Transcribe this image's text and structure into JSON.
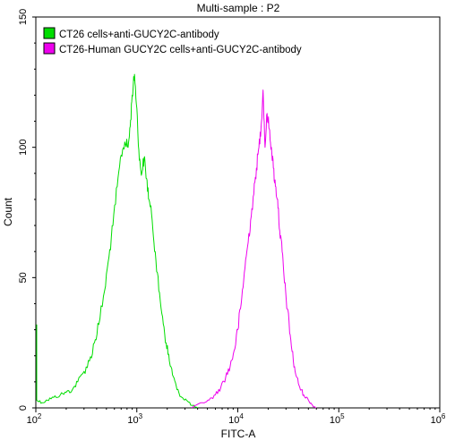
{
  "chart_data": {
    "type": "line",
    "title": "Multi-sample : P2",
    "xlabel": "FITC-A",
    "ylabel": "Count",
    "xscale": "log",
    "xlim": [
      100,
      1000000
    ],
    "ylim": [
      0,
      150
    ],
    "x_ticks": [
      {
        "base": "10",
        "exp": "2"
      },
      {
        "base": "10",
        "exp": "3"
      },
      {
        "base": "10",
        "exp": "4"
      },
      {
        "base": "10",
        "exp": "5"
      },
      {
        "base": "10",
        "exp": "6"
      }
    ],
    "y_ticks": [
      "0",
      "50",
      "100",
      "150"
    ],
    "grid": false,
    "legend_position": "top-left",
    "series": [
      {
        "name": "CT26 cells+anti-GUCY2C-antibody",
        "color": "#00dd00",
        "points": [
          [
            100,
            32
          ],
          [
            102,
            3
          ],
          [
            115,
            2
          ],
          [
            130,
            3
          ],
          [
            150,
            4
          ],
          [
            175,
            5
          ],
          [
            200,
            6
          ],
          [
            230,
            7
          ],
          [
            260,
            10
          ],
          [
            300,
            14
          ],
          [
            340,
            18
          ],
          [
            380,
            25
          ],
          [
            420,
            32
          ],
          [
            480,
            45
          ],
          [
            530,
            58
          ],
          [
            580,
            70
          ],
          [
            640,
            85
          ],
          [
            700,
            97
          ],
          [
            760,
            102
          ],
          [
            820,
            100
          ],
          [
            860,
            108
          ],
          [
            900,
            120
          ],
          [
            950,
            128
          ],
          [
            1000,
            115
          ],
          [
            1060,
            95
          ],
          [
            1120,
            90
          ],
          [
            1180,
            96
          ],
          [
            1250,
            88
          ],
          [
            1320,
            80
          ],
          [
            1420,
            72
          ],
          [
            1520,
            60
          ],
          [
            1650,
            45
          ],
          [
            1800,
            35
          ],
          [
            1950,
            25
          ],
          [
            2100,
            18
          ],
          [
            2300,
            12
          ],
          [
            2500,
            7
          ],
          [
            2800,
            4
          ],
          [
            3100,
            3
          ],
          [
            3500,
            1
          ],
          [
            4000,
            0
          ]
        ]
      },
      {
        "name": "CT26-Human GUCY2C cells+anti-GUCY2C-antibody",
        "color": "#ee00ee",
        "points": [
          [
            3500,
            0
          ],
          [
            4500,
            2
          ],
          [
            5200,
            3
          ],
          [
            6000,
            5
          ],
          [
            6800,
            8
          ],
          [
            7600,
            12
          ],
          [
            8400,
            16
          ],
          [
            9200,
            22
          ],
          [
            10000,
            30
          ],
          [
            10800,
            40
          ],
          [
            11600,
            52
          ],
          [
            12500,
            62
          ],
          [
            13400,
            72
          ],
          [
            14400,
            82
          ],
          [
            15300,
            92
          ],
          [
            16200,
            100
          ],
          [
            17000,
            108
          ],
          [
            17800,
            122
          ],
          [
            18600,
            100
          ],
          [
            19500,
            113
          ],
          [
            20500,
            107
          ],
          [
            21500,
            100
          ],
          [
            22500,
            92
          ],
          [
            23600,
            85
          ],
          [
            24800,
            80
          ],
          [
            26000,
            68
          ],
          [
            27500,
            60
          ],
          [
            29000,
            48
          ],
          [
            31000,
            38
          ],
          [
            33000,
            28
          ],
          [
            35500,
            18
          ],
          [
            38000,
            12
          ],
          [
            41000,
            8
          ],
          [
            45000,
            5
          ],
          [
            50000,
            3
          ],
          [
            55000,
            1
          ],
          [
            60000,
            0
          ]
        ]
      }
    ]
  }
}
